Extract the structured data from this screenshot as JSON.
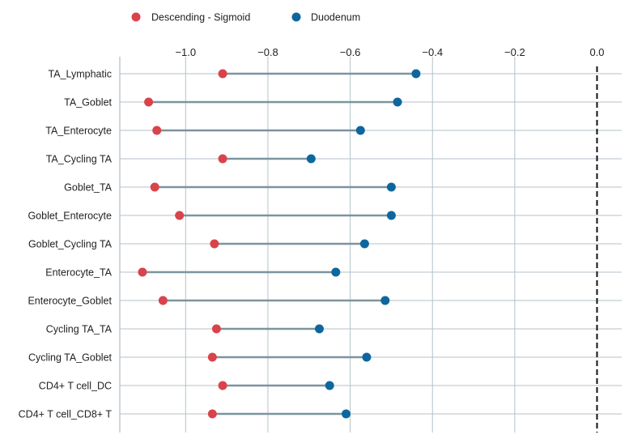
{
  "chart_data": {
    "type": "dumbbell",
    "title": "",
    "xlabel": "",
    "ylabel": "",
    "xlim": [
      -1.16,
      0.06
    ],
    "x_ticks": [
      -1.0,
      -0.8,
      -0.6,
      -0.4,
      -0.2,
      0.0
    ],
    "x_tick_labels": [
      "−1.0",
      "−0.8",
      "−0.6",
      "−0.4",
      "−0.2",
      "0.0"
    ],
    "x_axis_position": "top",
    "grid": true,
    "reference_line": 0.0,
    "legend_position": "top-left",
    "categories": [
      "TA_Lymphatic",
      "TA_Goblet",
      "TA_Enterocyte",
      "TA_Cycling TA",
      "Goblet_TA",
      "Goblet_Enterocyte",
      "Goblet_Cycling TA",
      "Enterocyte_TA",
      "Enterocyte_Goblet",
      "Cycling TA_TA",
      "Cycling TA_Goblet",
      "CD4+ T cell_DC",
      "CD4+ T cell_CD8+ T"
    ],
    "series": [
      {
        "name": "Descending - Sigmoid",
        "color": "#d9434b",
        "values": [
          -0.91,
          -1.09,
          -1.07,
          -0.91,
          -1.075,
          -1.015,
          -0.93,
          -1.105,
          -1.055,
          -0.925,
          -0.935,
          -0.91,
          -0.935
        ]
      },
      {
        "name": "Duodenum",
        "color": "#0d679e",
        "values": [
          -0.44,
          -0.485,
          -0.575,
          -0.695,
          -0.5,
          -0.5,
          -0.565,
          -0.635,
          -0.515,
          -0.675,
          -0.56,
          -0.65,
          -0.61
        ]
      }
    ],
    "connector_color": "#7c949e"
  }
}
